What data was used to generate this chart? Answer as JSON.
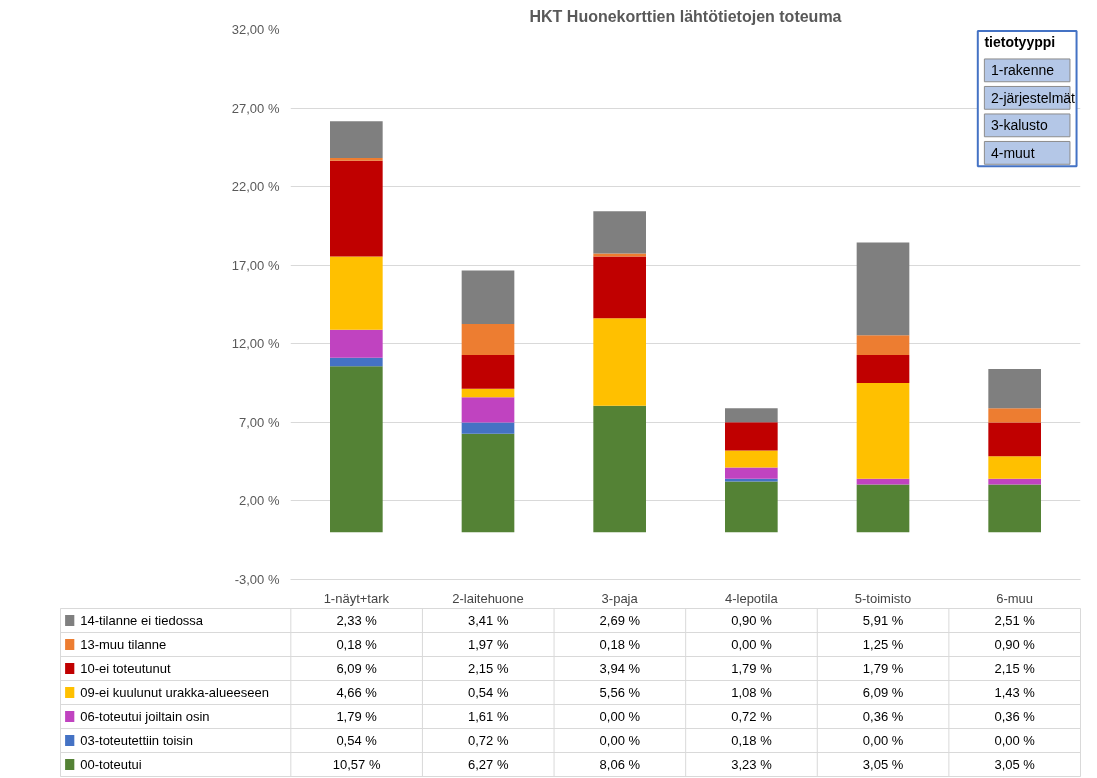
{
  "chart_data": {
    "type": "bar",
    "title": "HKT Huonekorttien lähtötietojen toteuma",
    "stacked": true,
    "grid": "y",
    "legend": "bottom",
    "categories": [
      "1-näyt+tark",
      "2-laitehuone",
      "3-paja",
      "4-lepotila",
      "5-toimisto",
      "6-muu"
    ],
    "ylim": [
      -3,
      32
    ],
    "yticks": [
      {
        "value": -3,
        "label": "-3,00 %"
      },
      {
        "value": 2,
        "label": "2,00 %"
      },
      {
        "value": 7,
        "label": "7,00 %"
      },
      {
        "value": 12,
        "label": "12,00 %"
      },
      {
        "value": 17,
        "label": "17,00 %"
      },
      {
        "value": 22,
        "label": "22,00 %"
      },
      {
        "value": 27,
        "label": "27,00 %"
      },
      {
        "value": 32,
        "label": "32,00 %"
      }
    ],
    "series": [
      {
        "name": "00-toteutui",
        "color": "#548235",
        "values": [
          10.57,
          6.27,
          8.06,
          3.23,
          3.05,
          3.05
        ],
        "value_labels": [
          "10,57 %",
          "6,27 %",
          "8,06 %",
          "3,23 %",
          "3,05 %",
          "3,05 %"
        ]
      },
      {
        "name": "03-toteutettiin toisin",
        "color": "#4472c4",
        "values": [
          0.54,
          0.72,
          0.0,
          0.18,
          0.0,
          0.0
        ],
        "value_labels": [
          "0,54 %",
          "0,72 %",
          "0,00 %",
          "0,18 %",
          "0,00 %",
          "0,00 %"
        ]
      },
      {
        "name": "06-toteutui joiltain osin",
        "color": "#c043c0",
        "values": [
          1.79,
          1.61,
          0.0,
          0.72,
          0.36,
          0.36
        ],
        "value_labels": [
          "1,79 %",
          "1,61 %",
          "0,00 %",
          "0,72 %",
          "0,36 %",
          "0,36 %"
        ]
      },
      {
        "name": "09-ei kuulunut urakka-alueeseen",
        "color": "#ffc000",
        "values": [
          4.66,
          0.54,
          5.56,
          1.08,
          6.09,
          1.43
        ],
        "value_labels": [
          "4,66 %",
          "0,54 %",
          "5,56 %",
          "1,08 %",
          "6,09 %",
          "1,43 %"
        ]
      },
      {
        "name": "10-ei toteutunut",
        "color": "#c00000",
        "values": [
          6.09,
          2.15,
          3.94,
          1.79,
          1.79,
          2.15
        ],
        "value_labels": [
          "6,09 %",
          "2,15 %",
          "3,94 %",
          "1,79 %",
          "1,79 %",
          "2,15 %"
        ]
      },
      {
        "name": "13-muu tilanne",
        "color": "#ed7d31",
        "values": [
          0.18,
          1.97,
          0.18,
          0.0,
          1.25,
          0.9
        ],
        "value_labels": [
          "0,18 %",
          "1,97 %",
          "0,18 %",
          "0,00 %",
          "1,25 %",
          "0,90 %"
        ]
      },
      {
        "name": "14-tilanne ei tiedossa",
        "color": "#7f7f7f",
        "values": [
          2.33,
          3.41,
          2.69,
          0.9,
          5.91,
          2.51
        ],
        "value_labels": [
          "2,33 %",
          "3,41 %",
          "2,69 %",
          "0,90 %",
          "5,91 %",
          "2,51 %"
        ]
      }
    ],
    "annotations": [
      "tietotyyppi",
      "1-rakenne",
      "2-järjestelmät",
      "3-kalusto",
      "4-muut"
    ]
  }
}
